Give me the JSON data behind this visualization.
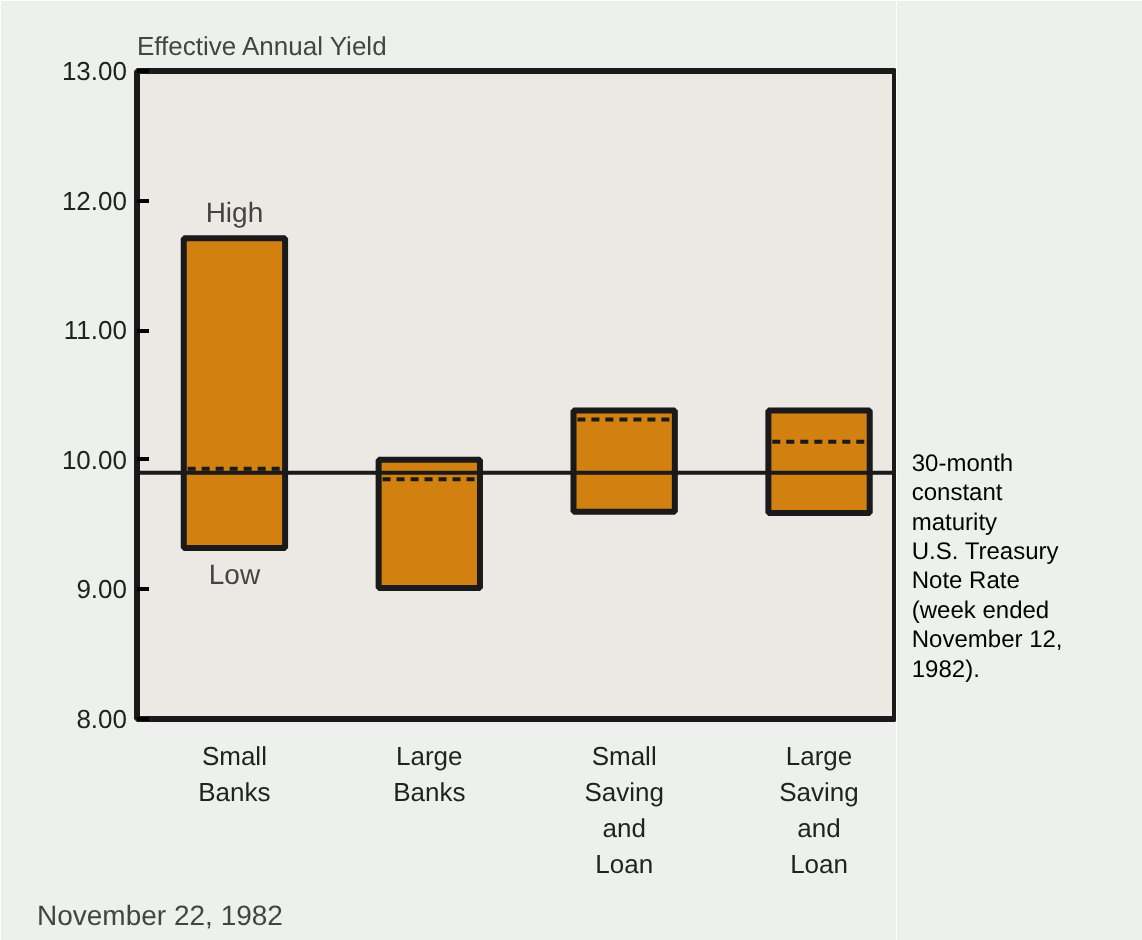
{
  "chart_data": {
    "type": "box",
    "ylabel": "Effective Annual Yield",
    "categories": [
      "Small\nBanks",
      "Large\nBanks",
      "Small\nSaving\nand\nLoan",
      "Large\nSaving\nand\nLoan"
    ],
    "boxes": [
      {
        "low": 9.32,
        "q1": 9.32,
        "median": 9.93,
        "q3": 11.71,
        "high": 11.71
      },
      {
        "low": 9.01,
        "q1": 9.01,
        "median": 9.85,
        "q3": 10.0,
        "high": 10.0
      },
      {
        "low": 9.6,
        "q1": 9.6,
        "median": 10.31,
        "q3": 10.38,
        "high": 10.38
      },
      {
        "low": 9.59,
        "q1": 9.59,
        "median": 10.14,
        "q3": 10.38,
        "high": 10.38
      }
    ],
    "color": "#d2800f",
    "ylim": [
      8,
      13
    ],
    "yticks": [
      {
        "value": 8,
        "label": "8.00"
      },
      {
        "value": 9,
        "label": "9.00"
      },
      {
        "value": 10,
        "label": "10.00"
      },
      {
        "value": 11,
        "label": "11.00"
      },
      {
        "value": 12,
        "label": "12.00"
      },
      {
        "value": 13,
        "label": "13.00"
      }
    ],
    "ref_lines": [
      {
        "axis": "y",
        "value": 9.9,
        "label": "30-month\nconstant\nmaturity\nU.S. Treasury\nNote Rate\n(week ended\nNovember 12,\n1982)."
      }
    ],
    "annotations": [
      {
        "text": "High",
        "x": "Small\nBanks",
        "y": 11.71
      },
      {
        "text": "Low",
        "x": "Small\nBanks",
        "y": 9.32
      },
      "November 22, 1982"
    ],
    "grid": false
  }
}
